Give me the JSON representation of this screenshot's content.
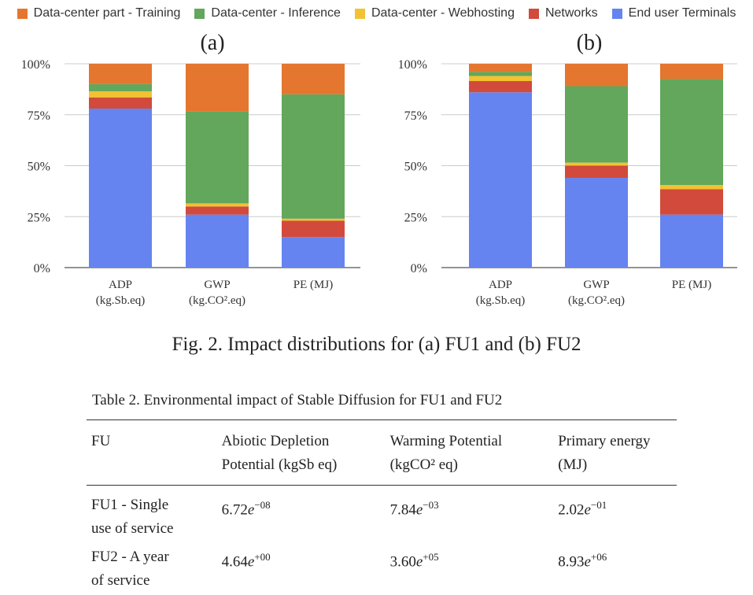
{
  "legend_title": "",
  "chart_data": [
    {
      "type": "bar",
      "stacked": true,
      "title": "(a)",
      "categories": [
        "ADP (kg.Sb.eq)",
        "GWP (kg.CO².eq)",
        "PE (MJ)"
      ],
      "category_lines": [
        [
          "ADP",
          "(kg.Sb.eq)"
        ],
        [
          "GWP",
          "(kg.CO².eq)"
        ],
        [
          "PE (MJ)"
        ]
      ],
      "ylim": [
        0,
        100
      ],
      "yticks": [
        "0%",
        "25%",
        "50%",
        "75%",
        "100%"
      ],
      "grid": true,
      "legend": "top",
      "series": [
        {
          "name": "End user Terminals",
          "color": "#6584ef",
          "values": [
            78,
            26,
            15
          ]
        },
        {
          "name": "Networks",
          "color": "#d24a3b",
          "values": [
            5.5,
            4,
            8
          ]
        },
        {
          "name": "Data-center - Webhosting",
          "color": "#f2c232",
          "values": [
            3,
            1.5,
            1
          ]
        },
        {
          "name": "Data-center - Inference",
          "color": "#62a75b",
          "values": [
            3.5,
            45,
            61
          ]
        },
        {
          "name": "Data-center part - Training",
          "color": "#e4762f",
          "values": [
            10,
            23.5,
            15
          ]
        }
      ]
    },
    {
      "type": "bar",
      "stacked": true,
      "title": "(b)",
      "categories": [
        "ADP (kg.Sb.eq)",
        "GWP (kg.CO².eq)",
        "PE (MJ)"
      ],
      "category_lines": [
        [
          "ADP",
          "(kg.Sb.eq)"
        ],
        [
          "GWP",
          "(kg.CO².eq)"
        ],
        [
          "PE (MJ)"
        ]
      ],
      "ylim": [
        0,
        100
      ],
      "yticks": [
        "0%",
        "25%",
        "50%",
        "75%",
        "100%"
      ],
      "grid": true,
      "legend": "top",
      "series": [
        {
          "name": "End user Terminals",
          "color": "#6584ef",
          "values": [
            86,
            44,
            26
          ]
        },
        {
          "name": "Networks",
          "color": "#d24a3b",
          "values": [
            5.5,
            6,
            12.5
          ]
        },
        {
          "name": "Data-center - Webhosting",
          "color": "#f2c232",
          "values": [
            2.5,
            1.5,
            2
          ]
        },
        {
          "name": "Data-center - Inference",
          "color": "#62a75b",
          "values": [
            2,
            37.5,
            52
          ]
        },
        {
          "name": "Data-center part - Training",
          "color": "#e4762f",
          "values": [
            4,
            11,
            7.5
          ]
        }
      ]
    }
  ],
  "legend_order": [
    {
      "name": "Data-center part - Training",
      "color": "#e4762f"
    },
    {
      "name": "Data-center - Inference",
      "color": "#62a75b"
    },
    {
      "name": "Data-center - Webhosting",
      "color": "#f2c232"
    },
    {
      "name": "Networks",
      "color": "#d24a3b"
    },
    {
      "name": "End user Terminals",
      "color": "#6584ef"
    }
  ],
  "caption": "Fig. 2. Impact distributions for (a) FU1 and (b) FU2",
  "table": {
    "title": "Table 2. Environmental impact of Stable Diffusion for FU1 and FU2",
    "headers": [
      [
        "FU"
      ],
      [
        "Abiotic Depletion",
        "Potential (kgSb eq)"
      ],
      [
        "Warming Potential",
        "(kgCO² eq)"
      ],
      [
        "Primary energy",
        "(MJ)"
      ]
    ],
    "rows": [
      {
        "fu": [
          "FU1 - Single",
          "use of service"
        ],
        "values": [
          {
            "mantissa": "6.72",
            "exp": "−08"
          },
          {
            "mantissa": "7.84",
            "exp": "−03"
          },
          {
            "mantissa": "2.02",
            "exp": "−01"
          }
        ]
      },
      {
        "fu": [
          "FU2 - A year",
          "of service"
        ],
        "values": [
          {
            "mantissa": "4.64",
            "exp": "+00"
          },
          {
            "mantissa": "3.60",
            "exp": "+05"
          },
          {
            "mantissa": "8.93",
            "exp": "+06"
          }
        ]
      }
    ],
    "e_symbol": "e"
  }
}
